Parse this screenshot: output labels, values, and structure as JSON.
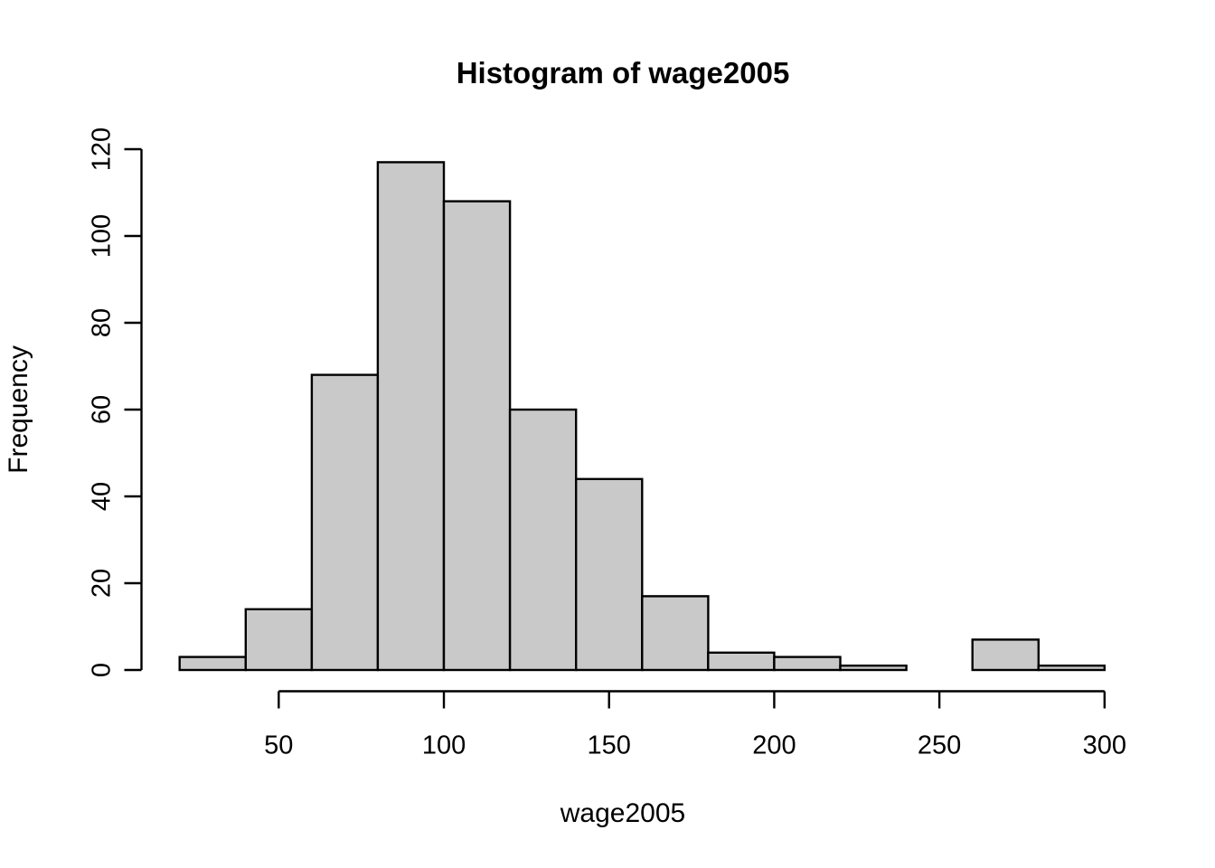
{
  "figure": {
    "background": "#FFFFFF"
  },
  "chart_data": {
    "type": "bar",
    "subtype": "histogram",
    "title": "Histogram of wage2005",
    "xlabel": "wage2005",
    "ylabel": "Frequency",
    "bin_width": 20,
    "bin_edges": [
      20,
      40,
      60,
      80,
      100,
      120,
      140,
      160,
      180,
      200,
      220,
      240,
      260,
      280,
      300
    ],
    "counts": [
      3,
      14,
      68,
      117,
      108,
      60,
      44,
      17,
      4,
      3,
      1,
      0,
      7,
      1
    ],
    "x_ticks": [
      50,
      100,
      150,
      200,
      250,
      300
    ],
    "y_ticks": [
      0,
      20,
      40,
      60,
      80,
      100,
      120
    ],
    "xlim": [
      20,
      300
    ],
    "ylim": [
      0,
      120
    ],
    "grid": false,
    "legend_position": "none",
    "bar_fill": "#C9C9C9",
    "bar_stroke": "#000000",
    "axis_color": "#000000",
    "text_color": "#000000"
  }
}
